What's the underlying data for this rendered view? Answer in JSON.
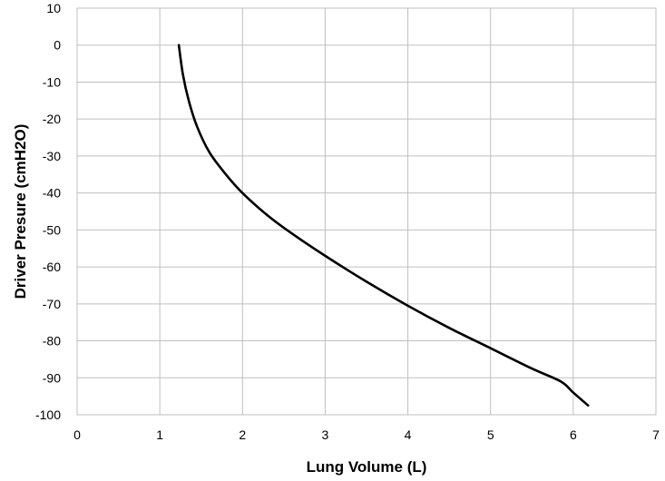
{
  "chart_data": {
    "type": "line",
    "title": "",
    "xlabel": "Lung Volume (L)",
    "ylabel": "Driver Presure (cmH2O)",
    "xlim": [
      0,
      7
    ],
    "ylim": [
      -100,
      10
    ],
    "xticks": [
      0,
      1,
      2,
      3,
      4,
      5,
      6,
      7
    ],
    "yticks": [
      10,
      0,
      -10,
      -20,
      -30,
      -40,
      -50,
      -60,
      -70,
      -80,
      -90,
      -100
    ],
    "x_tick_labels": [
      "0",
      "1",
      "2",
      "3",
      "4",
      "5",
      "6",
      "7"
    ],
    "y_tick_labels": [
      "10",
      "0",
      "-10",
      "-20",
      "-30",
      "-40",
      "-50",
      "-60",
      "-70",
      "-80",
      "-90",
      "-100"
    ],
    "grid": true,
    "legend": "none",
    "series": [
      {
        "color": "#000000",
        "x": [
          1.23,
          1.28,
          1.35,
          1.45,
          1.6,
          1.8,
          2.0,
          2.3,
          2.6,
          3.0,
          3.5,
          4.0,
          4.5,
          5.0,
          5.5,
          5.85,
          6.0,
          6.18
        ],
        "y": [
          0,
          -8,
          -15,
          -22,
          -29,
          -35,
          -40,
          -46,
          -51,
          -57,
          -64,
          -70.5,
          -76.5,
          -82,
          -87.5,
          -91,
          -94,
          -97.5
        ]
      }
    ]
  }
}
